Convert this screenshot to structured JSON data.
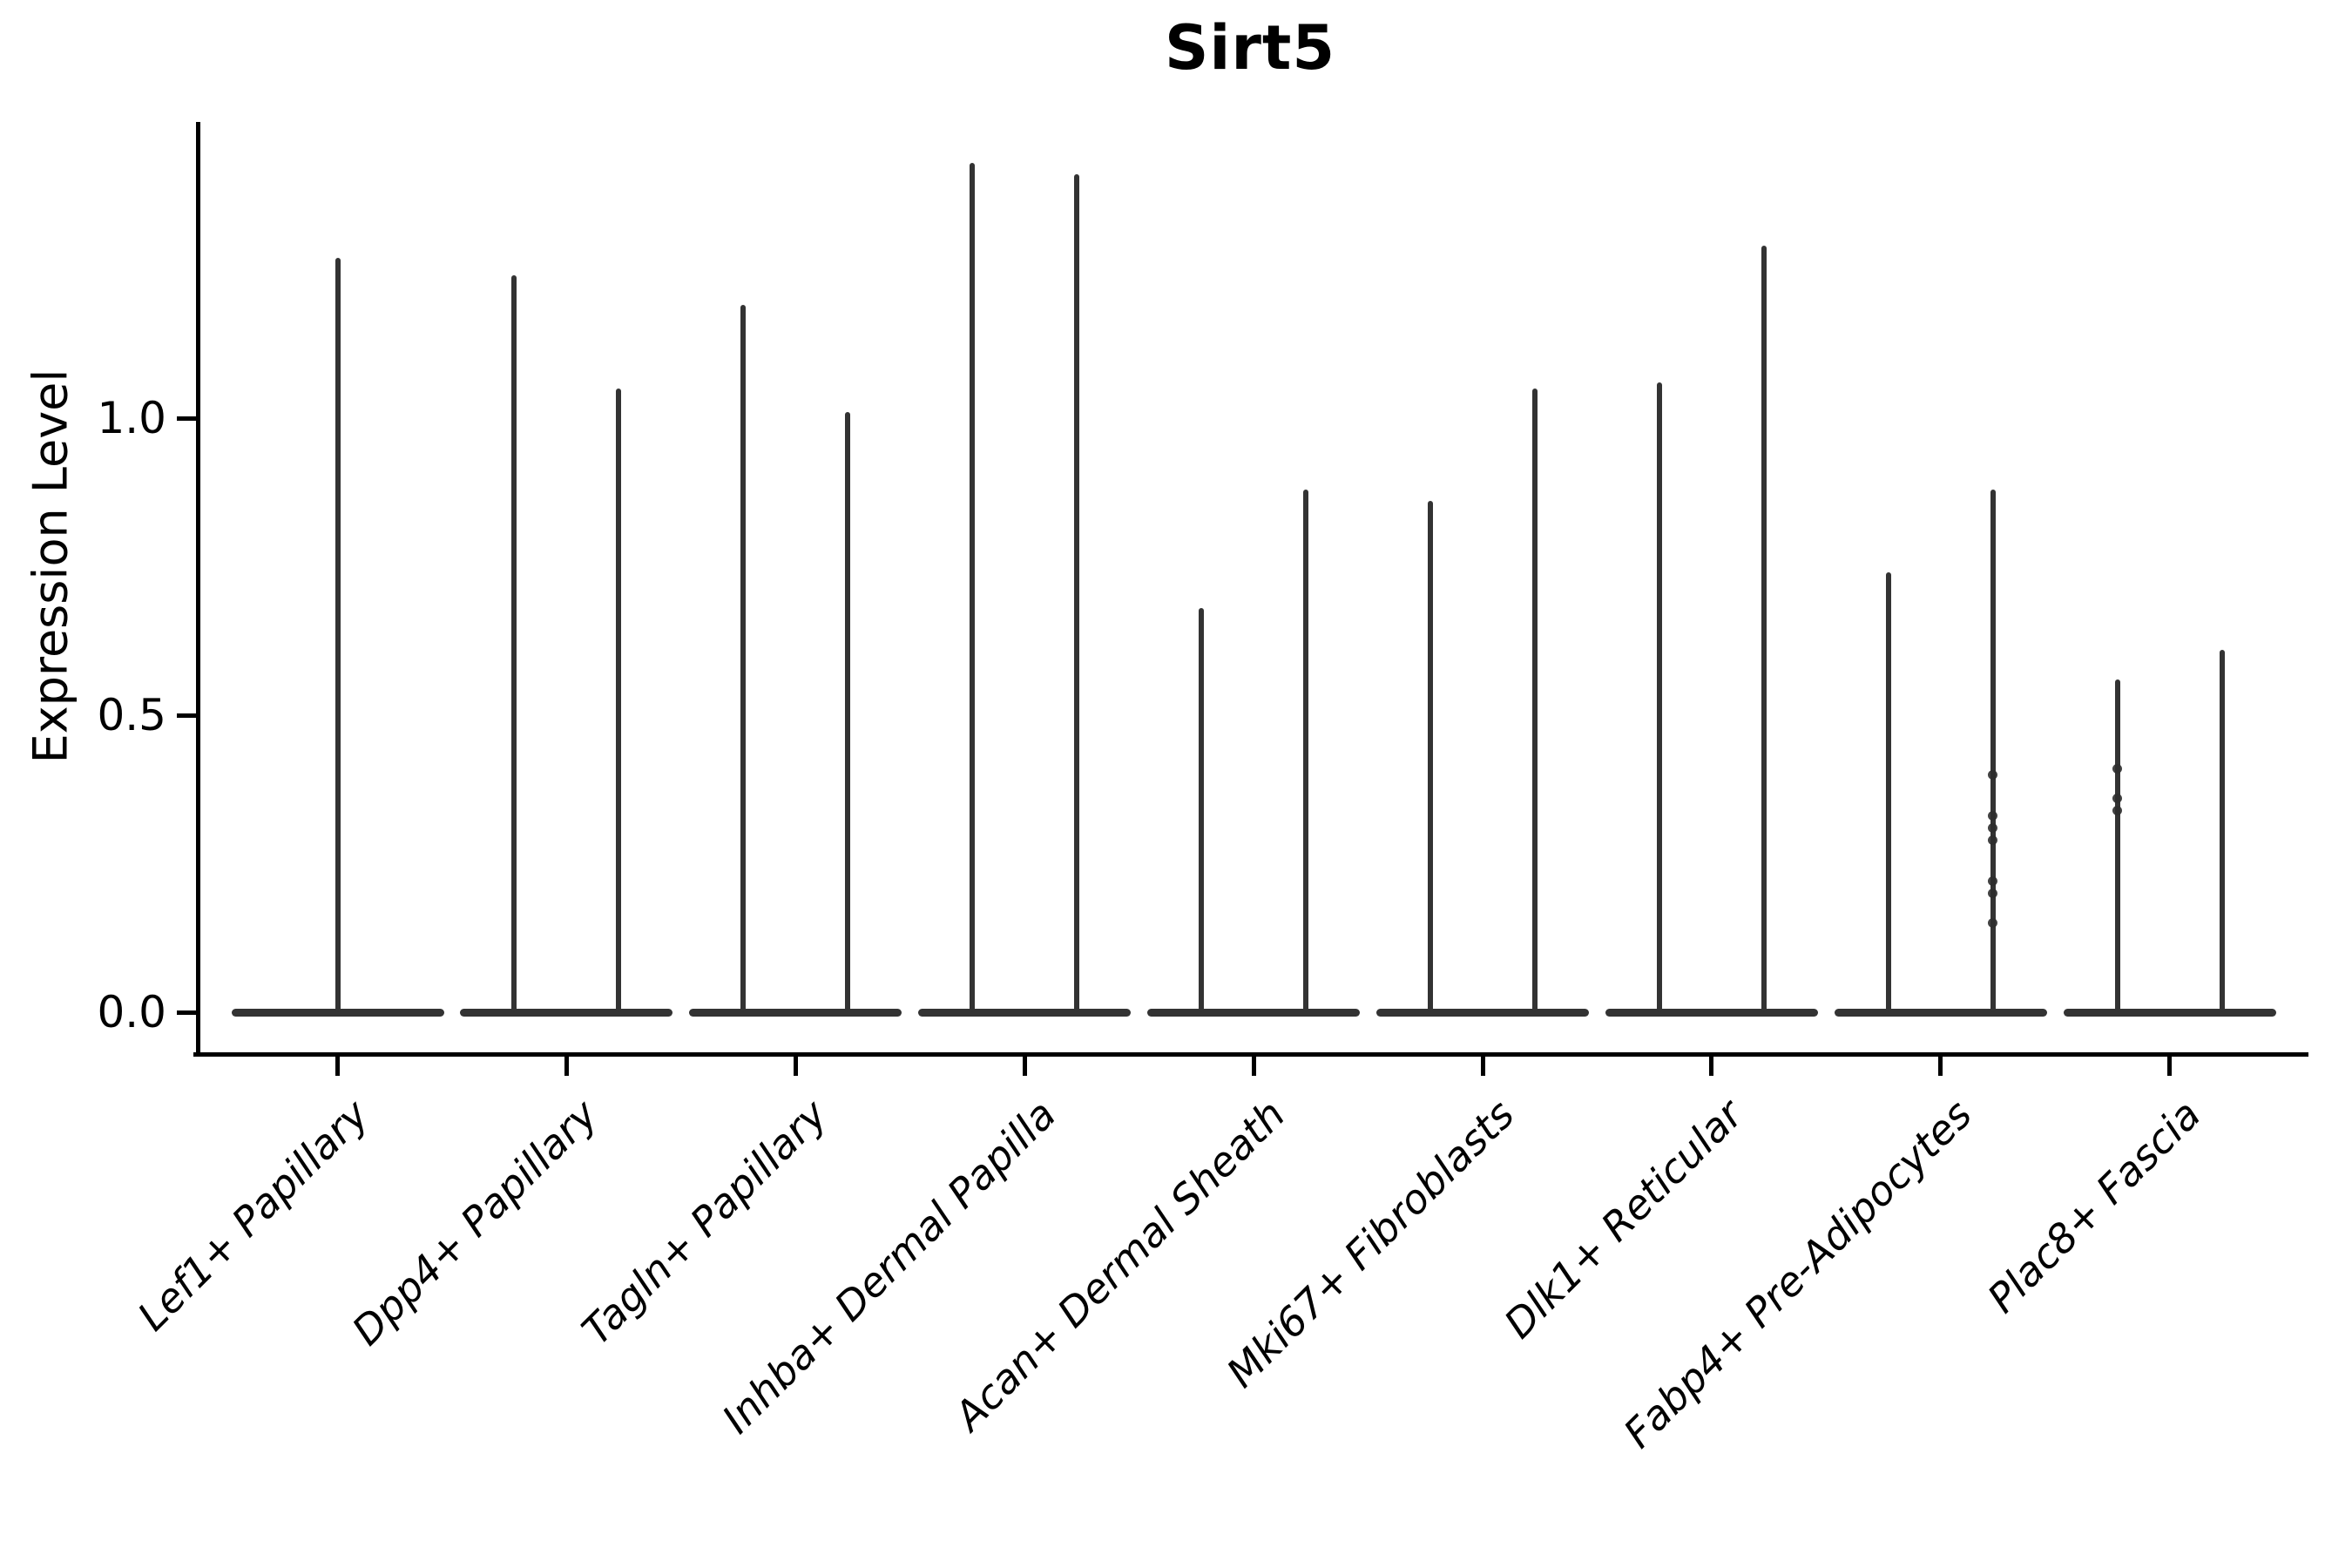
{
  "chart_data": {
    "type": "violin",
    "title": "Sirt5",
    "ylabel": "Expression Level",
    "xlabel": "",
    "ytick_labels": [
      "0.0",
      "0.5",
      "1.0"
    ],
    "ytick_values": [
      0.0,
      0.5,
      1.0
    ],
    "ylim": [
      -0.07,
      1.5
    ],
    "grid": false,
    "legend": "none",
    "violin_color": "#333333",
    "axis_color": "#000000",
    "categories": [
      "Lef1+ Papillary",
      "Dpp4+ Papillary",
      "Tagln+ Papillary",
      "Inhba+ Dermal Papilla",
      "Acan+ Dermal Sheath",
      "Mki67+ Fibroblasts",
      "Dlk1+ Reticular",
      "Fabp4+ Pre-Adipocytes",
      "Plac8+ Fascia"
    ],
    "series": [
      {
        "category": "Lef1+ Papillary",
        "spike_maxima": [
          1.27
        ],
        "jitter_points": [
          []
        ]
      },
      {
        "category": "Dpp4+ Papillary",
        "spike_maxima": [
          1.24,
          1.05
        ],
        "jitter_points": [
          [],
          []
        ]
      },
      {
        "category": "Tagln+ Papillary",
        "spike_maxima": [
          1.19,
          1.01
        ],
        "jitter_points": [
          [],
          []
        ]
      },
      {
        "category": "Inhba+ Dermal Papilla",
        "spike_maxima": [
          1.43,
          1.41
        ],
        "jitter_points": [
          [],
          []
        ]
      },
      {
        "category": "Acan+ Dermal Sheath",
        "spike_maxima": [
          0.68,
          0.88
        ],
        "jitter_points": [
          [],
          []
        ]
      },
      {
        "category": "Mki67+ Fibroblasts",
        "spike_maxima": [
          0.86,
          1.05
        ],
        "jitter_points": [
          [],
          []
        ]
      },
      {
        "category": "Dlk1+ Reticular",
        "spike_maxima": [
          1.06,
          1.29
        ],
        "jitter_points": [
          [],
          []
        ]
      },
      {
        "category": "Fabp4+ Pre-Adipocytes",
        "spike_maxima": [
          0.74,
          0.88
        ],
        "jitter_points": [
          [],
          [
            0.4,
            0.33,
            0.31,
            0.29,
            0.22,
            0.2,
            0.15
          ]
        ]
      },
      {
        "category": "Plac8+ Fascia",
        "spike_maxima": [
          0.56,
          0.61
        ],
        "jitter_points": [
          [
            0.41,
            0.36,
            0.34
          ],
          []
        ]
      }
    ],
    "description": "Violin plot of Sirt5 expression level per fibroblast cluster; most cells at 0 (flat violin base) with thin density spikes reaching each group maximum; two dodged group violins per category except the first."
  }
}
